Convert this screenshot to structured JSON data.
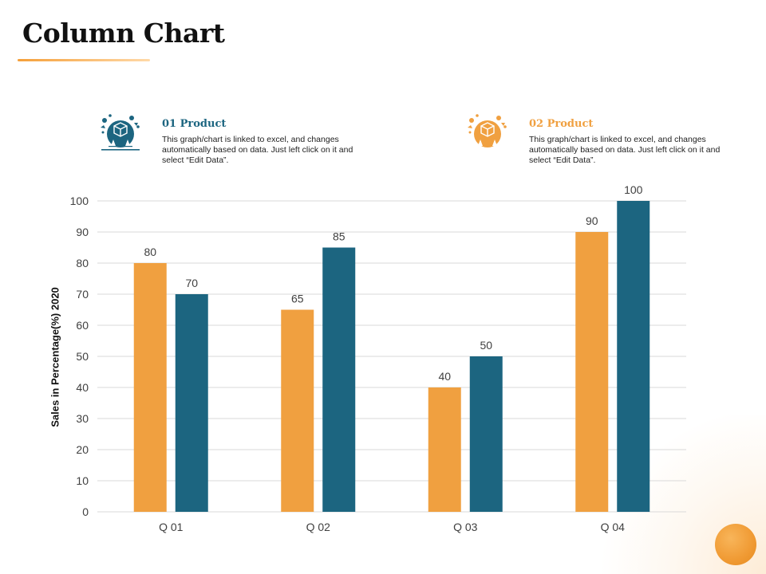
{
  "page": {
    "title": "Column Chart",
    "accent": "#f5a03a"
  },
  "legend": [
    {
      "heading": "01 Product",
      "description": "This graph/chart is linked to excel, and changes automatically based on data. Just left click on it and select “Edit Data”.",
      "color": "#1c6580",
      "icon": "product-box-icon"
    },
    {
      "heading": "02 Product",
      "description": "This graph/chart is linked to excel, and changes automatically based on data. Just left click on it and select “Edit Data”.",
      "color": "#f0a040",
      "icon": "product-box-icon"
    }
  ],
  "chart_data": {
    "type": "bar",
    "title": "",
    "xlabel": "",
    "ylabel": "Sales in Percentage(%) 2020",
    "categories": [
      "Q 01",
      "Q 02",
      "Q 03",
      "Q 04"
    ],
    "ylim": [
      0,
      100
    ],
    "yticks": [
      0,
      10,
      20,
      30,
      40,
      50,
      60,
      70,
      80,
      90,
      100
    ],
    "grid": true,
    "series": [
      {
        "color": "#f0a040",
        "values": [
          80,
          65,
          40,
          90
        ]
      },
      {
        "color": "#1c6580",
        "values": [
          70,
          85,
          50,
          100
        ]
      }
    ]
  }
}
